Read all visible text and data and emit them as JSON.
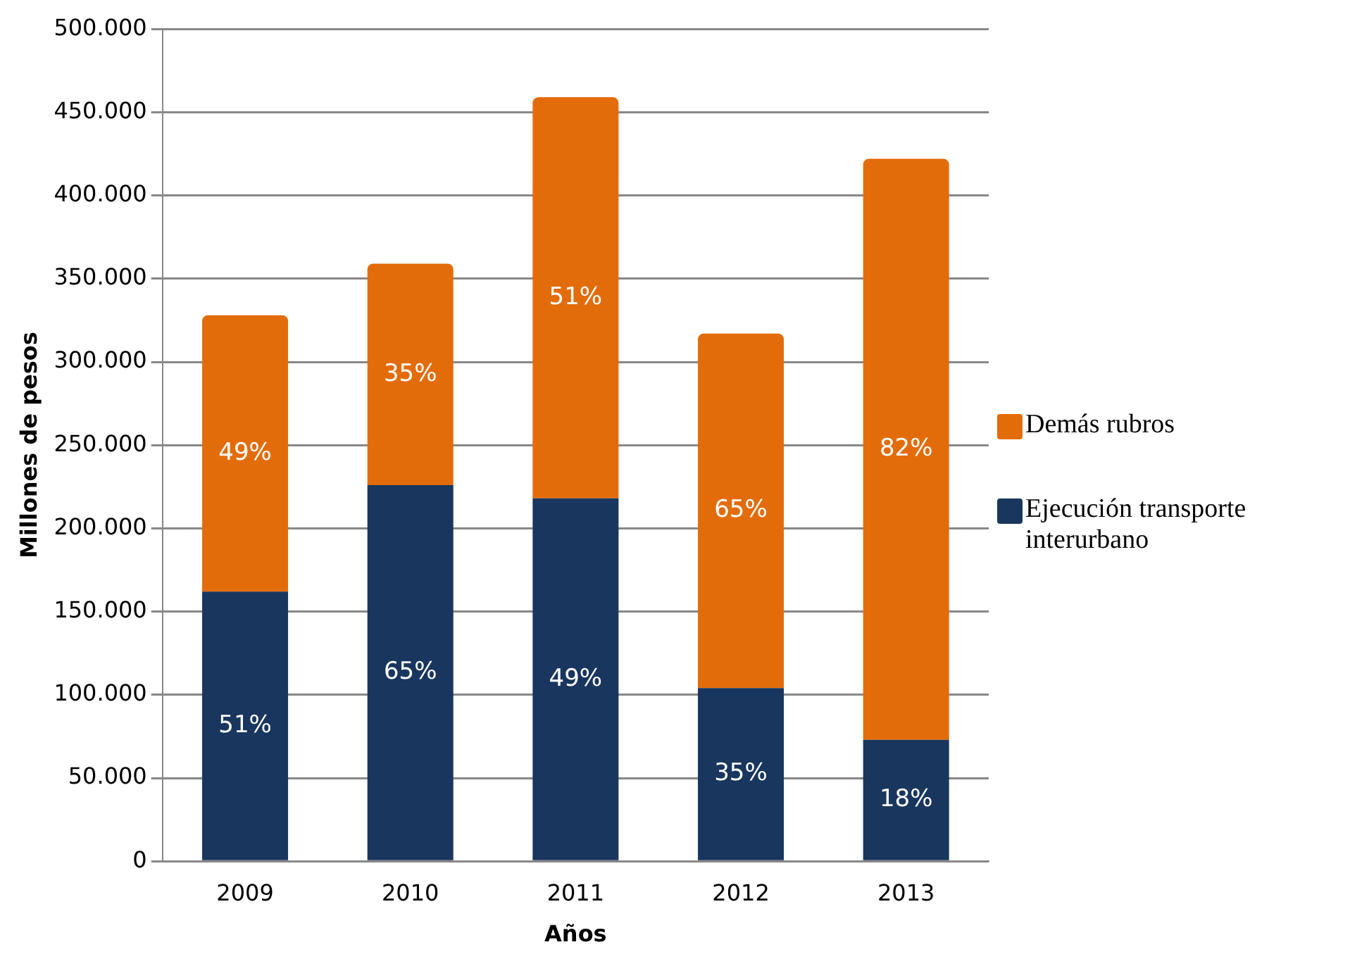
{
  "chart_data": {
    "type": "bar",
    "stacked": true,
    "xlabel": "Años",
    "ylabel": "Millones de pesos",
    "categories": [
      "2009",
      "2010",
      "2011",
      "2012",
      "2013"
    ],
    "series": [
      {
        "name": "Ejecución transporte interurbano",
        "color": "#19365e",
        "values": [
          162000,
          226000,
          218000,
          104000,
          73000
        ]
      },
      {
        "name": "Demás rubros",
        "color": "#e36c0a",
        "values": [
          166000,
          133000,
          241000,
          213000,
          349000
        ]
      }
    ],
    "annotations": [
      "51%",
      "65%",
      "49%",
      "35%",
      "18%",
      "49%",
      "35%",
      "51%",
      "65%",
      "82%"
    ],
    "ylim": [
      0,
      500000
    ],
    "yticks": [
      {
        "value": 0,
        "label": "0"
      },
      {
        "value": 50000,
        "label": "50.000"
      },
      {
        "value": 100000,
        "label": "100.000"
      },
      {
        "value": 150000,
        "label": "150.000"
      },
      {
        "value": 200000,
        "label": "200.000"
      },
      {
        "value": 250000,
        "label": "250.000"
      },
      {
        "value": 300000,
        "label": "300.000"
      },
      {
        "value": 350000,
        "label": "350.000"
      },
      {
        "value": 400000,
        "label": "400.000"
      },
      {
        "value": 450000,
        "label": "450.000"
      },
      {
        "value": 500000,
        "label": "500.000"
      }
    ],
    "grid": "y",
    "legend": "right"
  }
}
